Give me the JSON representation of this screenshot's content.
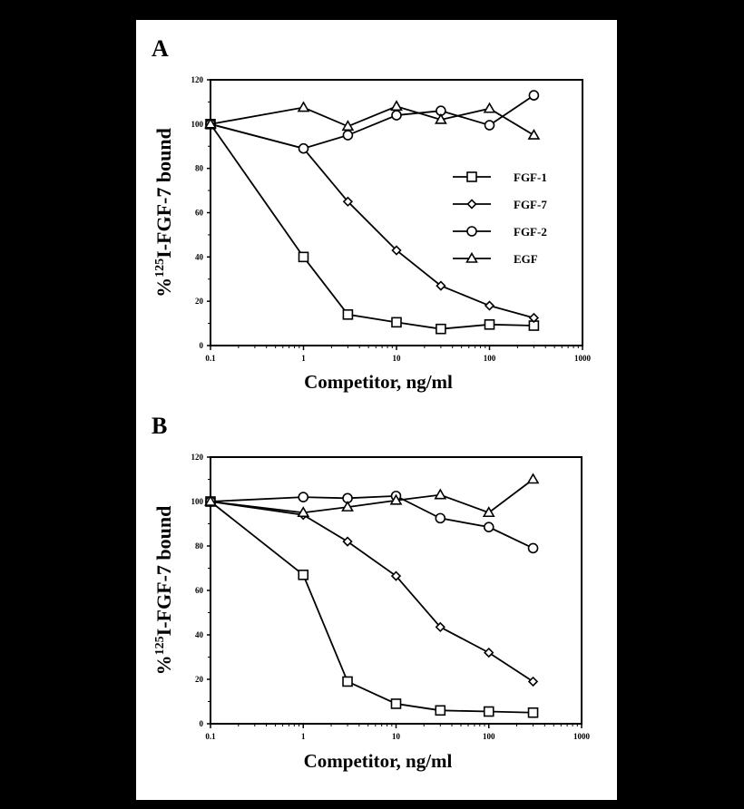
{
  "chart_data": [
    {
      "panel_label": "A",
      "type": "line",
      "xlabel": "Competitor,  ng/ml",
      "ylabel_prefix": "%",
      "ylabel_sup": "125",
      "ylabel_main": "I-FGF-7 bound",
      "xscale": "log",
      "xlim": [
        0.1,
        1000
      ],
      "ylim": [
        0,
        120
      ],
      "xticks": [
        "0.1",
        "1",
        "10",
        "100",
        "1000"
      ],
      "yticks": [
        "0",
        "20",
        "40",
        "60",
        "80",
        "100",
        "120"
      ],
      "grid": false,
      "legend_position": "right-middle",
      "x": [
        0.1,
        1,
        3,
        10,
        30,
        100,
        300
      ],
      "series": [
        {
          "name": "FGF-1",
          "marker": "square",
          "values": [
            100,
            40,
            14,
            10.5,
            7.5,
            9.5,
            9
          ]
        },
        {
          "name": "FGF-7",
          "marker": "diamond",
          "values": [
            100,
            89,
            65,
            43,
            27,
            18,
            12.5
          ]
        },
        {
          "name": "FGF-2",
          "marker": "circle",
          "values": [
            100,
            89,
            95,
            104,
            106,
            99.5,
            113
          ]
        },
        {
          "name": "EGF",
          "marker": "triangle",
          "values": [
            100,
            107.5,
            99,
            108,
            102,
            107,
            95
          ]
        }
      ]
    },
    {
      "panel_label": "B",
      "type": "line",
      "xlabel": "Competitor,  ng/ml",
      "ylabel_prefix": "%",
      "ylabel_sup": "125",
      "ylabel_main": "I-FGF-7 bound",
      "xscale": "log",
      "xlim": [
        0.1,
        1000
      ],
      "ylim": [
        0,
        120
      ],
      "xticks": [
        "0.1",
        "1",
        "10",
        "100",
        "1000"
      ],
      "yticks": [
        "0",
        "20",
        "40",
        "60",
        "80",
        "100",
        "120"
      ],
      "grid": false,
      "x": [
        0.1,
        1,
        3,
        10,
        30,
        100,
        300
      ],
      "series": [
        {
          "marker": "square",
          "values": [
            100,
            67,
            19,
            9,
            6,
            5.5,
            5
          ]
        },
        {
          "marker": "diamond",
          "values": [
            100,
            94,
            82,
            66.5,
            43.5,
            32,
            19
          ]
        },
        {
          "marker": "circle",
          "values": [
            100,
            102,
            101.5,
            102.5,
            92.5,
            88.5,
            79
          ]
        },
        {
          "marker": "triangle",
          "values": [
            100,
            95,
            97.5,
            100.5,
            103,
            95,
            110
          ]
        }
      ]
    }
  ]
}
